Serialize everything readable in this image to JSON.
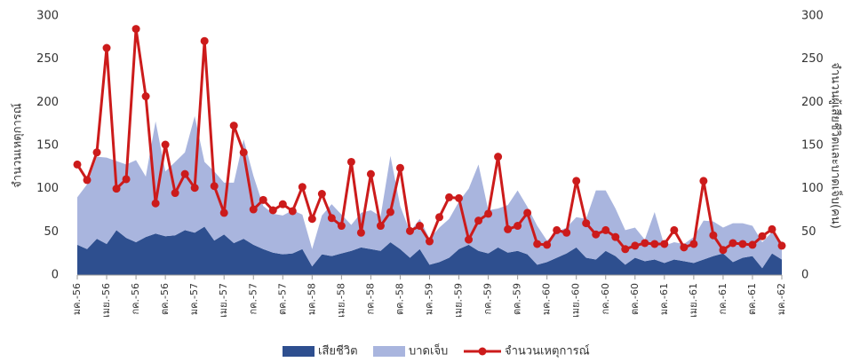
{
  "chart_data": {
    "type": "line",
    "ylabel": "จำนวนเหตุการณ์",
    "y2label": "จำนวนผู้เสียชีวิตและบาดเจ็บ(คน)",
    "categories": [
      "มค.-56",
      null,
      null,
      "เมย.-56",
      null,
      null,
      "กค.-56",
      null,
      null,
      "ตค.-56",
      null,
      null,
      "มค.-57",
      null,
      null,
      "เมย.-57",
      null,
      null,
      "กค.-57",
      null,
      null,
      "ตค.-57",
      null,
      null,
      "มค.-58",
      null,
      null,
      "เมย.-58",
      null,
      null,
      "กค.-58",
      null,
      null,
      "ตค.-58",
      null,
      null,
      "มค.-59",
      null,
      null,
      "เมย.-59",
      null,
      null,
      "กค.-59",
      null,
      null,
      "ตค.-59",
      null,
      null,
      "มค.-60",
      null,
      null,
      "เมย.-60",
      null,
      null,
      "กค.-60",
      null,
      null,
      "ตค.-60",
      null,
      null,
      "มค.-61",
      null,
      null,
      "เมย.-61",
      null,
      null,
      "กค.-61",
      null,
      null,
      "ตค.-61",
      null,
      null,
      "มค.-62"
    ],
    "series": [
      {
        "name": "เสียชีวิต",
        "type": "area",
        "axis": "y2",
        "color": "#2e4f8f",
        "values": [
          35,
          30,
          42,
          36,
          52,
          43,
          38,
          44,
          48,
          45,
          46,
          52,
          49,
          56,
          40,
          47,
          37,
          42,
          35,
          30,
          26,
          24,
          25,
          30,
          10,
          24,
          22,
          25,
          28,
          32,
          30,
          28,
          38,
          30,
          20,
          30,
          12,
          15,
          20,
          30,
          35,
          28,
          25,
          32,
          26,
          28,
          24,
          12,
          15,
          20,
          25,
          32,
          20,
          18,
          28,
          22,
          12,
          20,
          16,
          18,
          14,
          18,
          16,
          14,
          18,
          22,
          25,
          15,
          20,
          22,
          8,
          25,
          18
        ]
      },
      {
        "name": "บาดเจ็บ",
        "type": "area",
        "axis": "y2",
        "color": "#a9b5de",
        "values": [
          55,
          75,
          95,
          100,
          80,
          85,
          95,
          70,
          130,
          75,
          85,
          90,
          135,
          75,
          80,
          60,
          70,
          115,
          80,
          50,
          45,
          45,
          50,
          40,
          20,
          45,
          60,
          45,
          30,
          40,
          45,
          40,
          100,
          50,
          30,
          35,
          30,
          40,
          45,
          55,
          65,
          100,
          50,
          45,
          55,
          70,
          55,
          45,
          25,
          30,
          30,
          35,
          45,
          80,
          70,
          55,
          40,
          35,
          25,
          55,
          20,
          20,
          20,
          30,
          45,
          40,
          30,
          45,
          40,
          35,
          30,
          25,
          20
        ]
      },
      {
        "name": "จำนวนเหตุการณ์",
        "type": "line",
        "axis": "y",
        "color": "#cc1b1b",
        "values": [
          128,
          110,
          142,
          263,
          100,
          111,
          285,
          207,
          83,
          151,
          95,
          117,
          101,
          271,
          103,
          72,
          173,
          142,
          76,
          87,
          75,
          82,
          74,
          102,
          65,
          94,
          66,
          57,
          131,
          49,
          117,
          57,
          73,
          124,
          51,
          57,
          39,
          67,
          90,
          89,
          41,
          63,
          71,
          137,
          53,
          57,
          72,
          36,
          35,
          52,
          49,
          109,
          60,
          47,
          52,
          44,
          30,
          34,
          37,
          36,
          36,
          52,
          32,
          36,
          109,
          46,
          29,
          37,
          36,
          35,
          45,
          53,
          34
        ]
      }
    ],
    "stacked": true,
    "ylim": [
      0,
      300
    ],
    "yticks": [
      0,
      50,
      100,
      150,
      200,
      250,
      300
    ],
    "y2lim": [
      0,
      300
    ],
    "y2ticks": [
      0,
      50,
      100,
      150,
      200,
      250,
      300
    ]
  }
}
